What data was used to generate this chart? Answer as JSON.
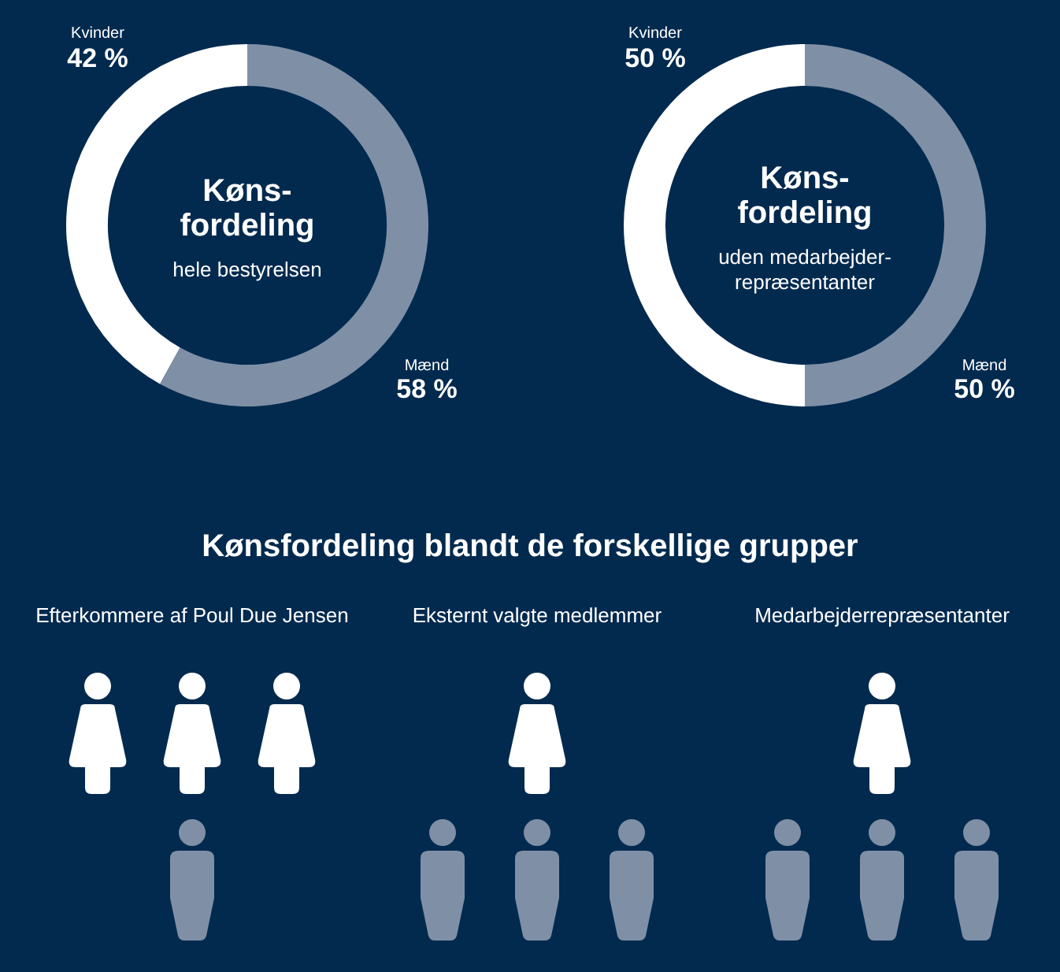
{
  "chart_data": [
    {
      "type": "donut",
      "title": "Køns-\nfordeling",
      "subtitle": "hele bestyrelsen",
      "categories": [
        "Kvinder",
        "Mænd"
      ],
      "values": [
        42,
        58
      ],
      "colors": [
        "#ffffff",
        "#7f90a6"
      ],
      "value_labels": [
        "42 %",
        "58 %"
      ]
    },
    {
      "type": "donut",
      "title": "Køns-\nfordeling",
      "subtitle": "uden medarbejder-\nrepræsentanter",
      "categories": [
        "Kvinder",
        "Mænd"
      ],
      "values": [
        50,
        50
      ],
      "colors": [
        "#ffffff",
        "#7f90a6"
      ],
      "value_labels": [
        "50 %",
        "50 %"
      ]
    },
    {
      "type": "other",
      "title": "Kønsfordeling blandt de forskellige grupper",
      "annotations": [
        "Efterkommere af Poul Due Jensen",
        "Eksternt valgte medlemmer",
        "Medarbejderrepræsentanter"
      ]
    }
  ]
}
